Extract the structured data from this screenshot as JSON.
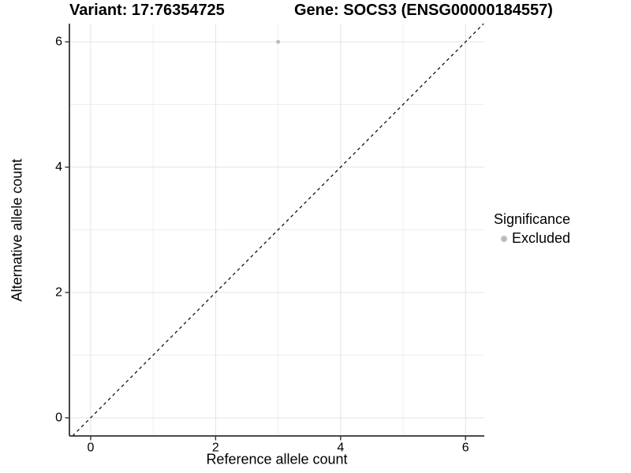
{
  "chart_data": {
    "type": "scatter",
    "title_left": "Variant: 17:76354725",
    "title_right": "Gene: SOCS3 (ENSG00000184557)",
    "xlabel": "Reference allele count",
    "ylabel": "Alternative allele count",
    "xlim": [
      -0.34,
      6.3
    ],
    "ylim": [
      -0.29,
      6.29
    ],
    "x_ticks": [
      0,
      2,
      4,
      6
    ],
    "y_ticks": [
      0,
      2,
      4,
      6
    ],
    "x_minor_ticks": [
      1,
      3,
      5
    ],
    "y_minor_ticks": [
      1,
      3,
      5
    ],
    "grid": true,
    "points": [
      {
        "x": 3,
        "y": 6,
        "significance": "Excluded"
      }
    ],
    "reference_line": {
      "slope": 1,
      "intercept": 0,
      "style": "dashed"
    },
    "legend": {
      "title": "Significance",
      "position": "right",
      "entries": [
        {
          "label": "Excluded",
          "color": "#bdbdbd"
        }
      ]
    }
  },
  "colors": {
    "background": "#ffffff",
    "grid_major": "#e3e3e3",
    "grid_minor": "#efefef",
    "axis_line": "#333333",
    "tick_mark": "#333333",
    "tick_label": "#000000",
    "title": "#000000",
    "reference_line": "#000000"
  }
}
